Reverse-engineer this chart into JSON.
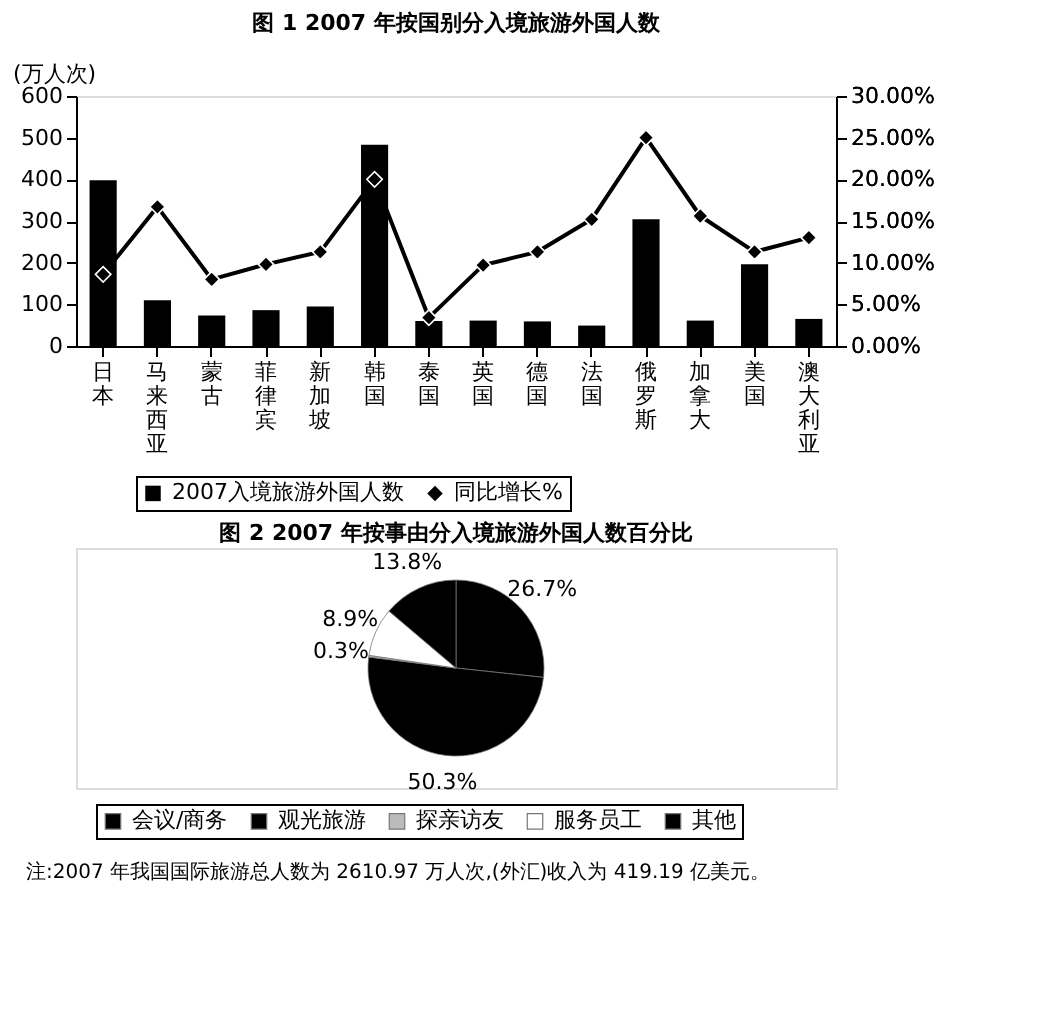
{
  "chart_data": [
    {
      "type": "bar",
      "title": "图 1   2007 年按国别分入境旅游外国人数",
      "ylabel": "(万人次)",
      "categories": [
        "日本",
        "马来西亚",
        "蒙古",
        "菲律宾",
        "新加坡",
        "韩国",
        "泰国",
        "英国",
        "德国",
        "法国",
        "俄罗斯",
        "加拿大",
        "美国",
        "澳大利亚"
      ],
      "series": [
        {
          "name": "2007入境旅游外国人数",
          "color": "#000000",
          "values": [
            398,
            110,
            73,
            86,
            95,
            483,
            60,
            61,
            59,
            49,
            304,
            61,
            196,
            65
          ]
        },
        {
          "name": "同比增长%",
          "type": "line",
          "axis": "y2",
          "color": "#000000",
          "values": [
            8.6,
            16.7,
            8.0,
            9.8,
            11.3,
            20.0,
            3.4,
            9.7,
            11.3,
            15.2,
            25.0,
            15.6,
            11.3,
            13.0
          ]
        }
      ],
      "ylim": [
        0,
        600
      ],
      "yticks": [
        0,
        100,
        200,
        300,
        400,
        500,
        600
      ],
      "y2lim": [
        0,
        30
      ],
      "y2ticks": [
        {
          "value": 0,
          "label": "0.00%"
        },
        {
          "value": 5,
          "label": "5.00%"
        },
        {
          "value": 10,
          "label": "10.00%"
        },
        {
          "value": 15,
          "label": "15.00%"
        },
        {
          "value": 20,
          "label": "20.00%"
        },
        {
          "value": 25,
          "label": "25.00%"
        },
        {
          "value": 30,
          "label": "30.00%"
        }
      ],
      "marker": "diamond",
      "legend": "bottom",
      "grid": false
    },
    {
      "type": "pie",
      "title": "图 2   2007 年按事由分入境旅游外国人数百分比",
      "categories": [
        "会议/商务",
        "观光旅游",
        "探亲访友",
        "服务员工",
        "其他"
      ],
      "values": [
        26.7,
        50.3,
        0.3,
        8.9,
        13.8
      ],
      "colors": [
        "#000000",
        "#000000",
        "#bbbbbb",
        "#ffffff",
        "#000000"
      ],
      "value_labels": [
        "26.7%",
        "50.3%",
        "0.3%",
        "8.9%",
        "13.8%"
      ],
      "legend": "bottom",
      "annotations": [
        "注:2007 年我国国际旅游总人数为 2610.97 万人次,(外汇)收入为 419.19 亿美元。"
      ]
    }
  ]
}
